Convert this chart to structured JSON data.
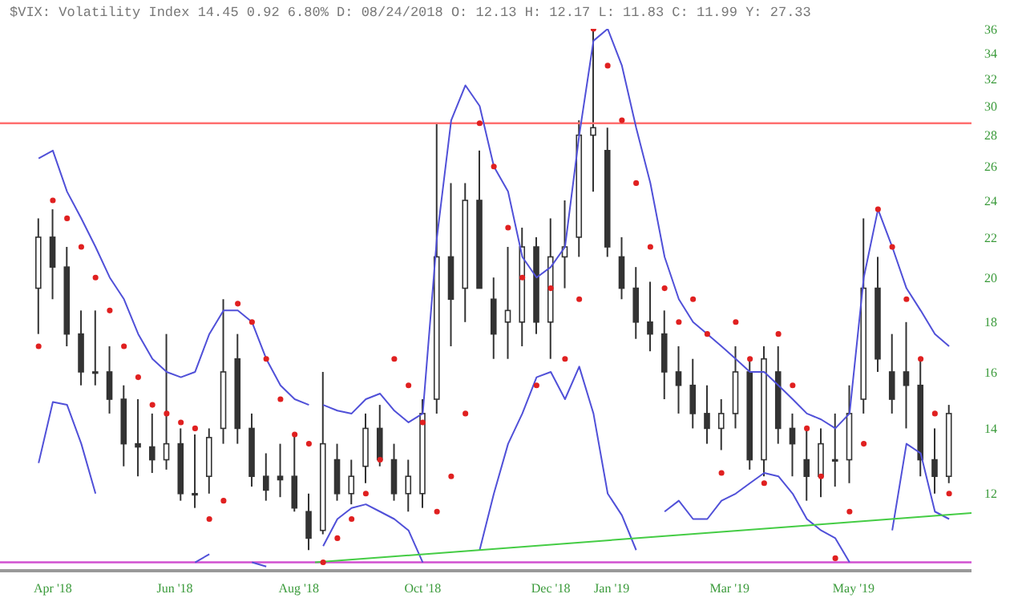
{
  "chart_data": {
    "type": "candlestick",
    "title": "$VIX: Volatility Index 14.45 0.92 6.80% D: 08/24/2018 O: 12.13 H: 12.17 L: 11.83 C: 11.99 Y: 27.33",
    "color": "#333333",
    "x": [
      "2018-03-26",
      "2018-04-02",
      "2018-04-09",
      "2018-04-16",
      "2018-04-23",
      "2018-04-30",
      "2018-05-07",
      "2018-05-14",
      "2018-05-21",
      "2018-05-28",
      "2018-06-04",
      "2018-06-11",
      "2018-06-18",
      "2018-06-25",
      "2018-07-02",
      "2018-07-09",
      "2018-07-16",
      "2018-07-23",
      "2018-07-30",
      "2018-08-06",
      "2018-08-13",
      "2018-08-20",
      "2018-08-27",
      "2018-09-03",
      "2018-09-10",
      "2018-09-17",
      "2018-09-24",
      "2018-10-01",
      "2018-10-08",
      "2018-10-15",
      "2018-10-22",
      "2018-10-29",
      "2018-11-05",
      "2018-11-12",
      "2018-11-19",
      "2018-11-26",
      "2018-12-03",
      "2018-12-10",
      "2018-12-17",
      "2018-12-24",
      "2018-12-31",
      "2019-01-07",
      "2019-01-14",
      "2019-01-21",
      "2019-01-28",
      "2019-02-04",
      "2019-02-11",
      "2019-02-18",
      "2019-02-25",
      "2019-03-04",
      "2019-03-11",
      "2019-03-18",
      "2019-03-25",
      "2019-04-01",
      "2019-04-08",
      "2019-04-15",
      "2019-04-22",
      "2019-04-29",
      "2019-05-06",
      "2019-05-13",
      "2019-05-20",
      "2019-05-27",
      "2019-06-03",
      "2019-06-10",
      "2019-06-17"
    ],
    "ohlc": [
      [
        19.5,
        23,
        17.5,
        22
      ],
      [
        22,
        23.5,
        19,
        20.5
      ],
      [
        20.5,
        21.5,
        17,
        17.5
      ],
      [
        17.5,
        18.5,
        15.5,
        16
      ],
      [
        16,
        18.5,
        15.5,
        16
      ],
      [
        16,
        17,
        14.5,
        15
      ],
      [
        15,
        15.5,
        12.8,
        13.5
      ],
      [
        13.5,
        15,
        12.5,
        13.4
      ],
      [
        13.4,
        14.5,
        12.6,
        13
      ],
      [
        13,
        17.5,
        12.7,
        13.5
      ],
      [
        13.5,
        14,
        11.8,
        12
      ],
      [
        12,
        13.8,
        11.6,
        12
      ],
      [
        12.5,
        14,
        12,
        13.7
      ],
      [
        14,
        19,
        13.5,
        16
      ],
      [
        16.5,
        17.5,
        13.5,
        14
      ],
      [
        14,
        14.5,
        12.2,
        12.5
      ],
      [
        12.5,
        13.2,
        11.8,
        12.1
      ],
      [
        12.5,
        13.5,
        11.9,
        12.4
      ],
      [
        12.5,
        13.8,
        11.5,
        11.6
      ],
      [
        11.5,
        12,
        10.5,
        10.8
      ],
      [
        11,
        16,
        10.9,
        13.5
      ],
      [
        13,
        13.5,
        11.8,
        12
      ],
      [
        12,
        13,
        11.7,
        12.5
      ],
      [
        12.8,
        14.5,
        12.3,
        14
      ],
      [
        14,
        14.8,
        12.8,
        13
      ],
      [
        13,
        13.5,
        11.8,
        12
      ],
      [
        12,
        13,
        11.5,
        12.5
      ],
      [
        12,
        15,
        11.6,
        14.5
      ],
      [
        15,
        28.8,
        14.5,
        21
      ],
      [
        21,
        25,
        17,
        19
      ],
      [
        19.5,
        25,
        18,
        24
      ],
      [
        24,
        27,
        19.5,
        19.5
      ],
      [
        19,
        20,
        16.5,
        17.5
      ],
      [
        18,
        21.5,
        16.5,
        18.5
      ],
      [
        18,
        22.5,
        17,
        21.5
      ],
      [
        21.5,
        22,
        17.5,
        18
      ],
      [
        18,
        23,
        16.5,
        21
      ],
      [
        21,
        24,
        19.5,
        21.5
      ],
      [
        22,
        29,
        21,
        28
      ],
      [
        28,
        36,
        24.5,
        28.5
      ],
      [
        27,
        28.5,
        21,
        21.5
      ],
      [
        21,
        22,
        19,
        19.5
      ],
      [
        19.5,
        20.5,
        17.3,
        18
      ],
      [
        18,
        19.8,
        16.8,
        17.5
      ],
      [
        17.5,
        18.5,
        15,
        16
      ],
      [
        16,
        17,
        14.5,
        15.5
      ],
      [
        15.5,
        16.5,
        14,
        14.5
      ],
      [
        14.5,
        15.5,
        13.5,
        14
      ],
      [
        14,
        15,
        13.3,
        14.5
      ],
      [
        14.5,
        17,
        14,
        16
      ],
      [
        16,
        16.5,
        12.7,
        13
      ],
      [
        13,
        17,
        12.5,
        16.5
      ],
      [
        16,
        17,
        13.5,
        14
      ],
      [
        14,
        14.5,
        12.5,
        13.5
      ],
      [
        13,
        14,
        11.8,
        12.5
      ],
      [
        12.5,
        14,
        11.9,
        13.5
      ],
      [
        13,
        14.5,
        12.2,
        13
      ],
      [
        13,
        15.5,
        12.3,
        14.5
      ],
      [
        15,
        23,
        14.5,
        19.5
      ],
      [
        19.5,
        21,
        16,
        16.5
      ],
      [
        16,
        17.5,
        14.5,
        15
      ],
      [
        16,
        18,
        14,
        15.5
      ],
      [
        15.5,
        16.5,
        12.5,
        13
      ],
      [
        13,
        14,
        12,
        12.5
      ],
      [
        12.5,
        14.8,
        12.3,
        14.5
      ]
    ],
    "series": [
      {
        "type": "line",
        "color": "#5050d8",
        "values": [
          26.5,
          27,
          24.5,
          23,
          21.5,
          20,
          19,
          17.5,
          16.5,
          16,
          15.8,
          16,
          17.5,
          18.5,
          18.5,
          18,
          16.5,
          15.5,
          15,
          14.8,
          14.8,
          14.6,
          14.5,
          15,
          15.2,
          14.6,
          14.2,
          14.5,
          22,
          29,
          31.5,
          30,
          26,
          24.5,
          21,
          20,
          20.5,
          21.5,
          28,
          35,
          36,
          33,
          28.5,
          25,
          21,
          19,
          18,
          17.5,
          17,
          16.5,
          16,
          16,
          15.5,
          15,
          14.5,
          14.3,
          14,
          14.5,
          20,
          23.5,
          21.5,
          19.5,
          18.5,
          17.5,
          17
        ]
      },
      {
        "type": "line",
        "color": "#5050d8",
        "values": [
          12.9,
          14.9,
          14.8,
          13.5,
          12,
          null,
          null,
          null,
          null,
          null,
          null,
          10.2,
          10.4,
          null,
          null,
          10.2,
          10.1,
          null,
          null,
          null,
          10.6,
          11.3,
          11.6,
          11.7,
          11.5,
          11.3,
          11,
          10.2,
          null,
          null,
          null,
          10.5,
          12,
          13.5,
          14.5,
          15.8,
          16,
          15,
          16.2,
          14.5,
          12,
          11.4,
          10.5,
          null,
          11.5,
          11.8,
          11.3,
          11.3,
          11.8,
          12,
          12.3,
          12.6,
          12.5,
          12,
          11.3,
          11,
          10.8,
          10.2,
          null,
          null,
          11,
          13.5,
          13.2,
          11.5,
          11.3
        ]
      },
      {
        "type": "scatter",
        "color": "#e02020",
        "marker": "circle",
        "values": [
          17,
          24,
          23,
          21.5,
          20,
          18.5,
          17,
          15.8,
          14.8,
          14.5,
          14.2,
          14,
          11.3,
          11.8,
          18.8,
          18,
          16.5,
          15,
          13.8,
          13.5,
          10.2,
          10.8,
          11.3,
          12,
          13,
          16.5,
          15.5,
          14.2,
          11.5,
          12.5,
          14.5,
          28.8,
          26,
          22.5,
          20,
          15.5,
          19.5,
          16.5,
          19,
          36,
          33,
          29,
          25,
          21.5,
          19.5,
          18,
          19,
          17.5,
          12.6,
          18,
          16.5,
          12.3,
          17.5,
          15.5,
          14,
          12.5,
          10.3,
          11.5,
          13.5,
          23.5,
          21.5,
          19,
          16.5,
          14.5,
          12
        ]
      },
      {
        "type": "line",
        "color": "#44cc44",
        "x": [
          "2018-08-09",
          "2019-06-28"
        ],
        "values": [
          10.2,
          11.46
        ]
      }
    ],
    "ref_lines": [
      {
        "axis": "y",
        "value": 28.8,
        "color": "#ff7070"
      },
      {
        "axis": "y",
        "value": 10.2,
        "color": "#d050d0"
      }
    ],
    "log": "y",
    "xlim": [
      "2018-03-07",
      "2019-06-28"
    ],
    "xticks": [
      {
        "value": "2018-04-02",
        "label": "Apr '18"
      },
      {
        "value": "2018-06-01",
        "label": "Jun '18"
      },
      {
        "value": "2018-08-01",
        "label": "Aug '18"
      },
      {
        "value": "2018-10-01",
        "label": "Oct '18"
      },
      {
        "value": "2018-12-03",
        "label": "Dec '18"
      },
      {
        "value": "2019-01-02",
        "label": "Jan '19"
      },
      {
        "value": "2019-03-01",
        "label": "Mar '19"
      },
      {
        "value": "2019-05-01",
        "label": "May '19"
      }
    ],
    "ylim": [
      10,
      36
    ],
    "yticks": [
      12,
      14,
      16,
      18,
      20,
      22,
      24,
      26,
      28,
      30,
      32,
      34,
      36
    ]
  }
}
